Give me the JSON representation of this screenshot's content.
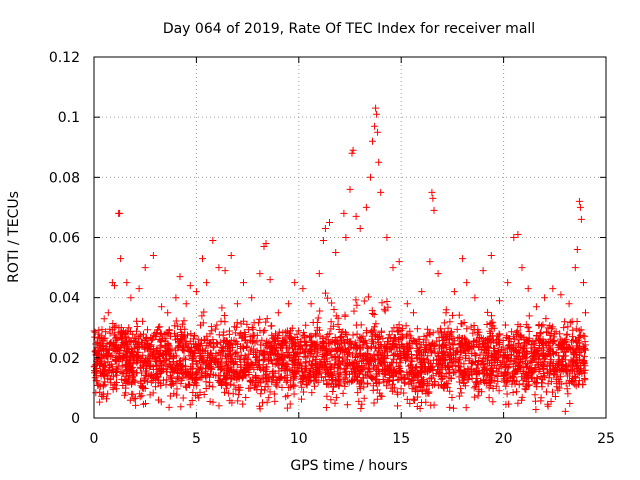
{
  "chart_data": {
    "type": "scatter",
    "title": "Day 064 of 2019, Rate Of TEC Index for receiver mall",
    "xlabel": "GPS time / hours",
    "ylabel": "ROTI / TECUs",
    "xlim": [
      0,
      25
    ],
    "ylim": [
      0,
      0.12
    ],
    "xticks": [
      0,
      5,
      10,
      15,
      20,
      25
    ],
    "xtick_labels": [
      "0",
      "5",
      "10",
      "15",
      "20",
      "25"
    ],
    "yticks": [
      0,
      0.02,
      0.04,
      0.06,
      0.08,
      0.1,
      0.12
    ],
    "ytick_labels": [
      "0",
      "0.02",
      "0.04",
      "0.06",
      "0.08",
      "0.1",
      "0.12"
    ],
    "grid": true,
    "marker": "+",
    "color": "#ff0000",
    "series": [
      {
        "name": "ROTI",
        "points": [
          [
            0.1,
            0.021
          ],
          [
            0.3,
            0.018
          ],
          [
            0.5,
            0.033
          ],
          [
            0.7,
            0.035
          ],
          [
            0.9,
            0.045
          ],
          [
            1.0,
            0.044
          ],
          [
            1.2,
            0.068
          ],
          [
            1.25,
            0.068
          ],
          [
            1.3,
            0.053
          ],
          [
            1.6,
            0.045
          ],
          [
            1.8,
            0.04
          ],
          [
            2.2,
            0.043
          ],
          [
            2.5,
            0.05
          ],
          [
            2.9,
            0.054
          ],
          [
            3.3,
            0.037
          ],
          [
            3.6,
            0.035
          ],
          [
            4.0,
            0.04
          ],
          [
            4.2,
            0.047
          ],
          [
            4.5,
            0.038
          ],
          [
            4.7,
            0.044
          ],
          [
            5.0,
            0.042
          ],
          [
            5.3,
            0.053
          ],
          [
            5.5,
            0.045
          ],
          [
            5.8,
            0.059
          ],
          [
            6.1,
            0.05
          ],
          [
            6.4,
            0.049
          ],
          [
            6.7,
            0.054
          ],
          [
            7.0,
            0.038
          ],
          [
            7.3,
            0.045
          ],
          [
            7.7,
            0.04
          ],
          [
            8.1,
            0.048
          ],
          [
            8.3,
            0.057
          ],
          [
            8.4,
            0.058
          ],
          [
            8.6,
            0.046
          ],
          [
            9.0,
            0.035
          ],
          [
            9.5,
            0.038
          ],
          [
            9.8,
            0.045
          ],
          [
            10.2,
            0.043
          ],
          [
            10.6,
            0.038
          ],
          [
            11.0,
            0.048
          ],
          [
            11.2,
            0.059
          ],
          [
            11.3,
            0.063
          ],
          [
            11.5,
            0.065
          ],
          [
            11.8,
            0.055
          ],
          [
            12.2,
            0.068
          ],
          [
            12.3,
            0.06
          ],
          [
            12.5,
            0.076
          ],
          [
            12.6,
            0.088
          ],
          [
            12.65,
            0.089
          ],
          [
            12.8,
            0.067
          ],
          [
            13.0,
            0.063
          ],
          [
            13.3,
            0.07
          ],
          [
            13.5,
            0.08
          ],
          [
            13.6,
            0.092
          ],
          [
            13.7,
            0.097
          ],
          [
            13.75,
            0.103
          ],
          [
            13.8,
            0.101
          ],
          [
            13.85,
            0.095
          ],
          [
            13.9,
            0.085
          ],
          [
            14.0,
            0.075
          ],
          [
            14.3,
            0.06
          ],
          [
            14.6,
            0.05
          ],
          [
            14.9,
            0.052
          ],
          [
            15.3,
            0.038
          ],
          [
            15.6,
            0.035
          ],
          [
            16.0,
            0.042
          ],
          [
            16.4,
            0.052
          ],
          [
            16.5,
            0.075
          ],
          [
            16.55,
            0.073
          ],
          [
            16.6,
            0.069
          ],
          [
            16.8,
            0.048
          ],
          [
            17.2,
            0.036
          ],
          [
            17.6,
            0.042
          ],
          [
            18.0,
            0.053
          ],
          [
            18.2,
            0.045
          ],
          [
            18.6,
            0.04
          ],
          [
            19.0,
            0.049
          ],
          [
            19.4,
            0.054
          ],
          [
            19.8,
            0.039
          ],
          [
            20.2,
            0.045
          ],
          [
            20.5,
            0.06
          ],
          [
            20.7,
            0.061
          ],
          [
            20.9,
            0.05
          ],
          [
            21.2,
            0.043
          ],
          [
            21.6,
            0.037
          ],
          [
            22.0,
            0.04
          ],
          [
            22.4,
            0.043
          ],
          [
            22.8,
            0.041
          ],
          [
            23.2,
            0.038
          ],
          [
            23.5,
            0.05
          ],
          [
            23.6,
            0.056
          ],
          [
            23.7,
            0.072
          ],
          [
            23.75,
            0.07
          ],
          [
            23.8,
            0.066
          ],
          [
            23.9,
            0.045
          ],
          [
            24.0,
            0.035
          ]
        ]
      }
    ],
    "density_profile": [
      [
        0.0,
        0.022,
        0.004
      ],
      [
        0.5,
        0.03,
        0.004
      ],
      [
        1.0,
        0.033,
        0.004
      ],
      [
        1.5,
        0.03,
        0.004
      ],
      [
        2.0,
        0.032,
        0.004
      ],
      [
        2.5,
        0.03,
        0.004
      ],
      [
        3.0,
        0.031,
        0.004
      ],
      [
        3.5,
        0.028,
        0.004
      ],
      [
        4.0,
        0.03,
        0.004
      ],
      [
        4.5,
        0.032,
        0.004
      ],
      [
        5.0,
        0.03,
        0.004
      ],
      [
        5.5,
        0.038,
        0.004
      ],
      [
        6.0,
        0.035,
        0.004
      ],
      [
        6.5,
        0.04,
        0.004
      ],
      [
        7.0,
        0.033,
        0.004
      ],
      [
        7.5,
        0.03,
        0.004
      ],
      [
        8.0,
        0.034,
        0.004
      ],
      [
        8.5,
        0.036,
        0.004
      ],
      [
        9.0,
        0.028,
        0.004
      ],
      [
        9.5,
        0.032,
        0.004
      ],
      [
        10.0,
        0.03,
        0.004
      ],
      [
        10.5,
        0.032,
        0.004
      ],
      [
        11.0,
        0.038,
        0.004
      ],
      [
        11.5,
        0.042,
        0.004
      ],
      [
        12.0,
        0.036,
        0.004
      ],
      [
        12.5,
        0.04,
        0.004
      ],
      [
        13.0,
        0.038,
        0.004
      ],
      [
        13.5,
        0.045,
        0.004
      ],
      [
        14.0,
        0.042,
        0.004
      ],
      [
        14.5,
        0.036,
        0.004
      ],
      [
        15.0,
        0.032,
        0.004
      ],
      [
        15.5,
        0.024,
        0.003
      ],
      [
        16.0,
        0.024,
        0.003
      ],
      [
        16.5,
        0.03,
        0.003
      ],
      [
        17.0,
        0.032,
        0.004
      ],
      [
        17.5,
        0.036,
        0.004
      ],
      [
        18.0,
        0.034,
        0.004
      ],
      [
        18.5,
        0.032,
        0.004
      ],
      [
        19.0,
        0.036,
        0.004
      ],
      [
        19.5,
        0.034,
        0.004
      ],
      [
        20.0,
        0.03,
        0.004
      ],
      [
        20.5,
        0.03,
        0.004
      ],
      [
        21.0,
        0.032,
        0.004
      ],
      [
        21.5,
        0.036,
        0.004
      ],
      [
        22.0,
        0.035,
        0.004
      ],
      [
        22.5,
        0.034,
        0.004
      ],
      [
        23.0,
        0.032,
        0.004
      ],
      [
        23.5,
        0.034,
        0.004
      ],
      [
        24.0,
        0.024,
        0.004
      ]
    ]
  }
}
